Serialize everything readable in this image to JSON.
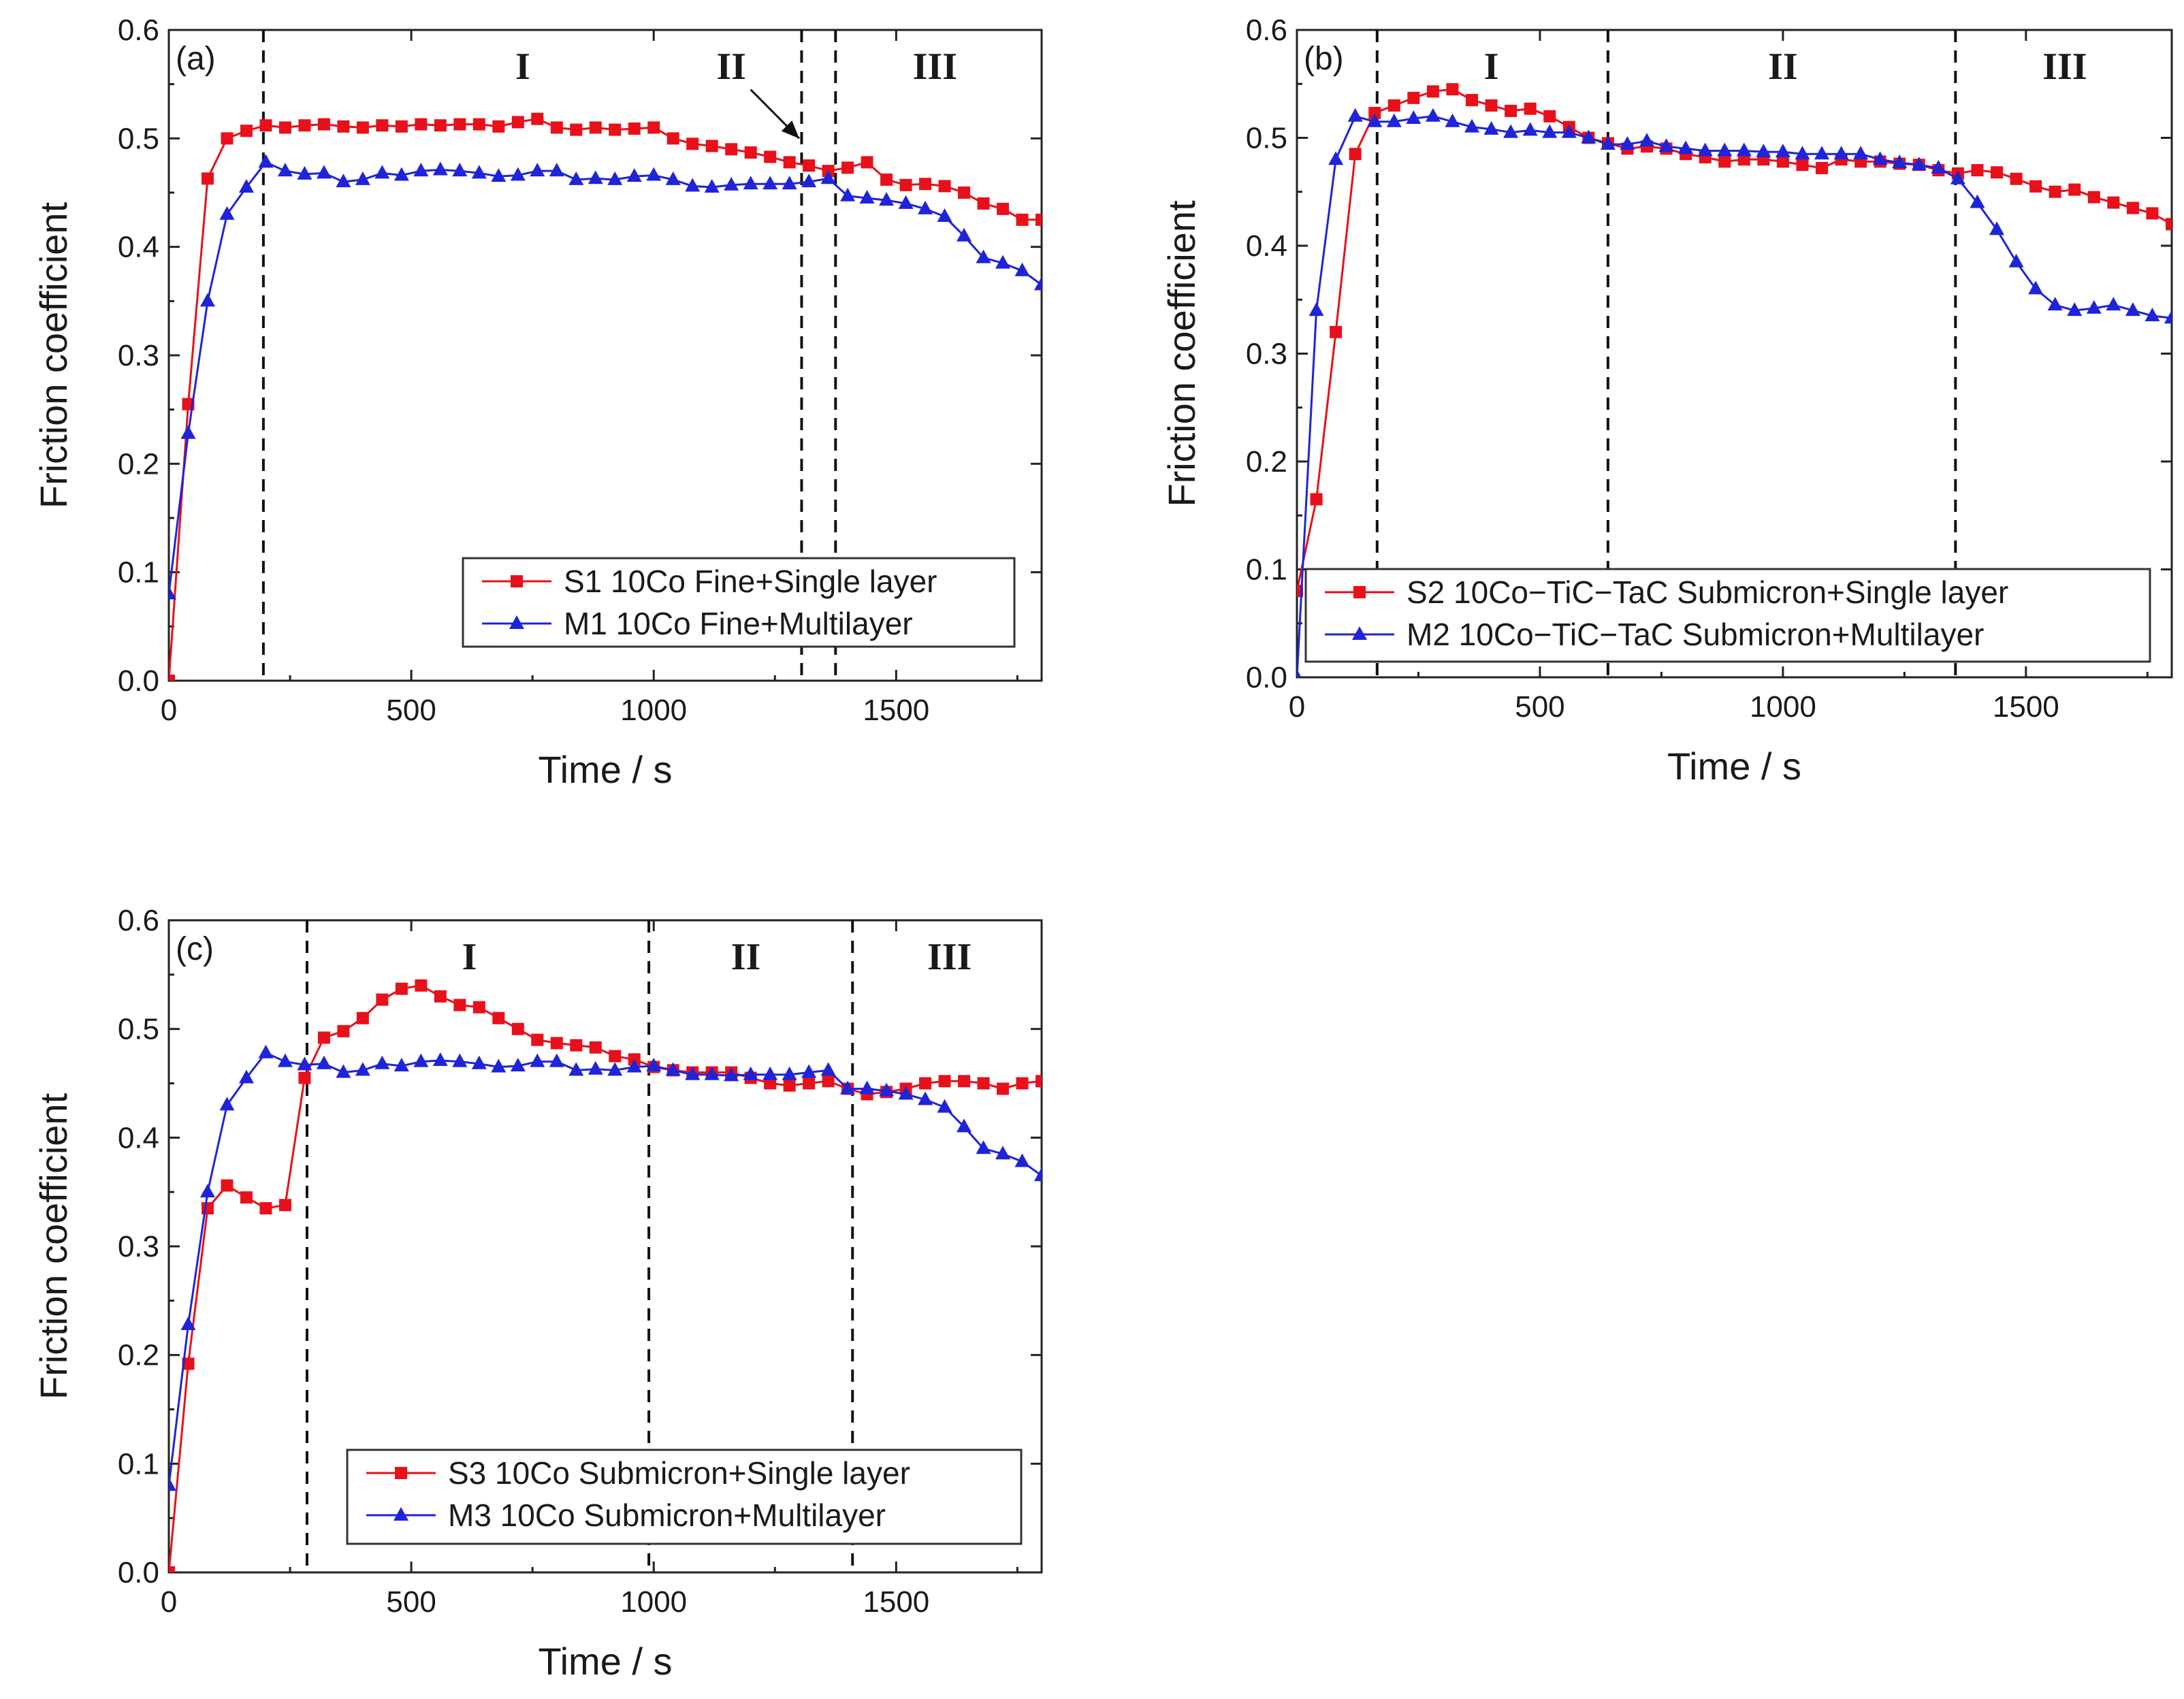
{
  "chart_data": [
    {
      "type": "line",
      "panel_label": "(a)",
      "xlabel": "Time / s",
      "ylabel": "Friction coefficient",
      "xlim": [
        0,
        1800
      ],
      "ylim": [
        0,
        0.6
      ],
      "xticks": [
        0,
        500,
        1000,
        1500
      ],
      "yticks": [
        0.0,
        0.1,
        0.2,
        0.3,
        0.4,
        0.5,
        0.6
      ],
      "legend_position": "bottom-right",
      "regions": [
        {
          "label": "I",
          "x_label": 730
        },
        {
          "label": "II",
          "x_label": 1160
        },
        {
          "label": "III",
          "x_label": 1580
        }
      ],
      "dividers": [
        195,
        1305,
        1375
      ],
      "annotation_arrow": {
        "from": [
          1200,
          0.545
        ],
        "to": [
          1300,
          0.5
        ]
      },
      "series": [
        {
          "name": "S1 10Co Fine+Single layer",
          "color": "#e8101a",
          "marker": "square",
          "x": [
            0,
            40,
            80,
            120,
            160,
            200,
            240,
            280,
            320,
            360,
            400,
            440,
            480,
            520,
            560,
            600,
            640,
            680,
            720,
            760,
            800,
            840,
            880,
            920,
            960,
            1000,
            1040,
            1080,
            1120,
            1160,
            1200,
            1240,
            1280,
            1320,
            1360,
            1400,
            1440,
            1480,
            1520,
            1560,
            1600,
            1640,
            1680,
            1720,
            1760,
            1800
          ],
          "y": [
            0.0,
            0.255,
            0.463,
            0.5,
            0.507,
            0.512,
            0.51,
            0.512,
            0.513,
            0.511,
            0.51,
            0.512,
            0.511,
            0.513,
            0.512,
            0.513,
            0.513,
            0.511,
            0.515,
            0.518,
            0.51,
            0.508,
            0.51,
            0.508,
            0.509,
            0.51,
            0.5,
            0.495,
            0.493,
            0.49,
            0.487,
            0.483,
            0.478,
            0.475,
            0.47,
            0.473,
            0.478,
            0.462,
            0.457,
            0.458,
            0.456,
            0.45,
            0.44,
            0.435,
            0.425,
            0.425
          ]
        },
        {
          "name": "M1 10Co Fine+Multilayer",
          "color": "#1f24d8",
          "marker": "triangle",
          "x": [
            0,
            40,
            80,
            120,
            160,
            200,
            240,
            280,
            320,
            360,
            400,
            440,
            480,
            520,
            560,
            600,
            640,
            680,
            720,
            760,
            800,
            840,
            880,
            920,
            960,
            1000,
            1040,
            1080,
            1120,
            1160,
            1200,
            1240,
            1280,
            1320,
            1360,
            1400,
            1440,
            1480,
            1520,
            1560,
            1600,
            1640,
            1680,
            1720,
            1760,
            1800
          ],
          "y": [
            0.08,
            0.228,
            0.35,
            0.43,
            0.455,
            0.478,
            0.47,
            0.467,
            0.468,
            0.46,
            0.462,
            0.468,
            0.466,
            0.47,
            0.471,
            0.47,
            0.468,
            0.465,
            0.466,
            0.47,
            0.47,
            0.462,
            0.463,
            0.462,
            0.465,
            0.466,
            0.462,
            0.456,
            0.455,
            0.457,
            0.458,
            0.458,
            0.458,
            0.46,
            0.463,
            0.447,
            0.445,
            0.443,
            0.44,
            0.435,
            0.428,
            0.41,
            0.39,
            0.385,
            0.378,
            0.365
          ]
        }
      ]
    },
    {
      "type": "line",
      "panel_label": "(b)",
      "xlabel": "Time / s",
      "ylabel": "Friction coefficient",
      "xlim": [
        0,
        1800
      ],
      "ylim": [
        0,
        0.6
      ],
      "xticks": [
        0,
        500,
        1000,
        1500
      ],
      "yticks": [
        0.0,
        0.1,
        0.2,
        0.3,
        0.4,
        0.5,
        0.6
      ],
      "legend_position": "bottom-right",
      "regions": [
        {
          "label": "I",
          "x_label": 400
        },
        {
          "label": "II",
          "x_label": 1000
        },
        {
          "label": "III",
          "x_label": 1580
        }
      ],
      "dividers": [
        165,
        640,
        1355
      ],
      "series": [
        {
          "name": "S2 10Co−TiC−TaC Submicron+Single layer",
          "color": "#e8101a",
          "marker": "square",
          "x": [
            0,
            40,
            80,
            120,
            160,
            200,
            240,
            280,
            320,
            360,
            400,
            440,
            480,
            520,
            560,
            600,
            640,
            680,
            720,
            760,
            800,
            840,
            880,
            920,
            960,
            1000,
            1040,
            1080,
            1120,
            1160,
            1200,
            1240,
            1280,
            1320,
            1360,
            1400,
            1440,
            1480,
            1520,
            1560,
            1600,
            1640,
            1680,
            1720,
            1760,
            1800
          ],
          "y": [
            0.08,
            0.165,
            0.32,
            0.485,
            0.523,
            0.53,
            0.537,
            0.543,
            0.545,
            0.535,
            0.53,
            0.525,
            0.527,
            0.52,
            0.51,
            0.5,
            0.495,
            0.49,
            0.492,
            0.49,
            0.485,
            0.482,
            0.478,
            0.48,
            0.48,
            0.478,
            0.475,
            0.472,
            0.48,
            0.478,
            0.478,
            0.476,
            0.475,
            0.47,
            0.467,
            0.47,
            0.468,
            0.462,
            0.455,
            0.45,
            0.452,
            0.445,
            0.44,
            0.435,
            0.43,
            0.42
          ]
        },
        {
          "name": "M2 10Co−TiC−TaC Submicron+Multilayer",
          "color": "#1f24d8",
          "marker": "triangle",
          "x": [
            0,
            40,
            80,
            120,
            160,
            200,
            240,
            280,
            320,
            360,
            400,
            440,
            480,
            520,
            560,
            600,
            640,
            680,
            720,
            760,
            800,
            840,
            880,
            920,
            960,
            1000,
            1040,
            1080,
            1120,
            1160,
            1200,
            1240,
            1280,
            1320,
            1360,
            1400,
            1440,
            1480,
            1520,
            1560,
            1600,
            1640,
            1680,
            1720,
            1760,
            1800
          ],
          "y": [
            0.0,
            0.34,
            0.48,
            0.52,
            0.515,
            0.515,
            0.518,
            0.52,
            0.515,
            0.51,
            0.508,
            0.505,
            0.507,
            0.505,
            0.505,
            0.5,
            0.494,
            0.494,
            0.497,
            0.492,
            0.49,
            0.488,
            0.488,
            0.488,
            0.487,
            0.487,
            0.485,
            0.485,
            0.485,
            0.485,
            0.48,
            0.477,
            0.475,
            0.472,
            0.462,
            0.44,
            0.415,
            0.385,
            0.36,
            0.345,
            0.34,
            0.342,
            0.345,
            0.34,
            0.335,
            0.333
          ]
        }
      ]
    },
    {
      "type": "line",
      "panel_label": "(c)",
      "xlabel": "Time / s",
      "ylabel": "Friction coefficient",
      "xlim": [
        0,
        1800
      ],
      "ylim": [
        0,
        0.6
      ],
      "xticks": [
        0,
        500,
        1000,
        1500
      ],
      "yticks": [
        0.0,
        0.1,
        0.2,
        0.3,
        0.4,
        0.5,
        0.6
      ],
      "legend_position": "bottom-right",
      "regions": [
        {
          "label": "I",
          "x_label": 620
        },
        {
          "label": "II",
          "x_label": 1190
        },
        {
          "label": "III",
          "x_label": 1610
        }
      ],
      "dividers": [
        285,
        990,
        1410
      ],
      "series": [
        {
          "name": "S3 10Co Submicron+Single layer",
          "color": "#e8101a",
          "marker": "square",
          "x": [
            0,
            40,
            80,
            120,
            160,
            200,
            240,
            280,
            320,
            360,
            400,
            440,
            480,
            520,
            560,
            600,
            640,
            680,
            720,
            760,
            800,
            840,
            880,
            920,
            960,
            1000,
            1040,
            1080,
            1120,
            1160,
            1200,
            1240,
            1280,
            1320,
            1360,
            1400,
            1440,
            1480,
            1520,
            1560,
            1600,
            1640,
            1680,
            1720,
            1760,
            1800
          ],
          "y": [
            0.0,
            0.192,
            0.335,
            0.356,
            0.345,
            0.335,
            0.338,
            0.455,
            0.492,
            0.498,
            0.51,
            0.527,
            0.537,
            0.54,
            0.53,
            0.522,
            0.52,
            0.51,
            0.5,
            0.49,
            0.487,
            0.485,
            0.483,
            0.475,
            0.472,
            0.465,
            0.462,
            0.46,
            0.46,
            0.46,
            0.455,
            0.45,
            0.448,
            0.45,
            0.452,
            0.445,
            0.44,
            0.442,
            0.445,
            0.45,
            0.452,
            0.452,
            0.45,
            0.445,
            0.45,
            0.452
          ]
        },
        {
          "name": "M3 10Co Submicron+Multilayer",
          "color": "#1f24d8",
          "marker": "triangle",
          "x": [
            0,
            40,
            80,
            120,
            160,
            200,
            240,
            280,
            320,
            360,
            400,
            440,
            480,
            520,
            560,
            600,
            640,
            680,
            720,
            760,
            800,
            840,
            880,
            920,
            960,
            1000,
            1040,
            1080,
            1120,
            1160,
            1200,
            1240,
            1280,
            1320,
            1360,
            1400,
            1440,
            1480,
            1520,
            1560,
            1600,
            1640,
            1680,
            1720,
            1760,
            1800
          ],
          "y": [
            0.08,
            0.228,
            0.35,
            0.43,
            0.455,
            0.478,
            0.47,
            0.467,
            0.468,
            0.46,
            0.462,
            0.468,
            0.466,
            0.47,
            0.471,
            0.47,
            0.468,
            0.465,
            0.466,
            0.47,
            0.47,
            0.462,
            0.463,
            0.462,
            0.465,
            0.466,
            0.462,
            0.458,
            0.458,
            0.457,
            0.458,
            0.458,
            0.458,
            0.46,
            0.462,
            0.445,
            0.445,
            0.443,
            0.44,
            0.435,
            0.428,
            0.41,
            0.39,
            0.385,
            0.378,
            0.365
          ]
        }
      ]
    }
  ]
}
